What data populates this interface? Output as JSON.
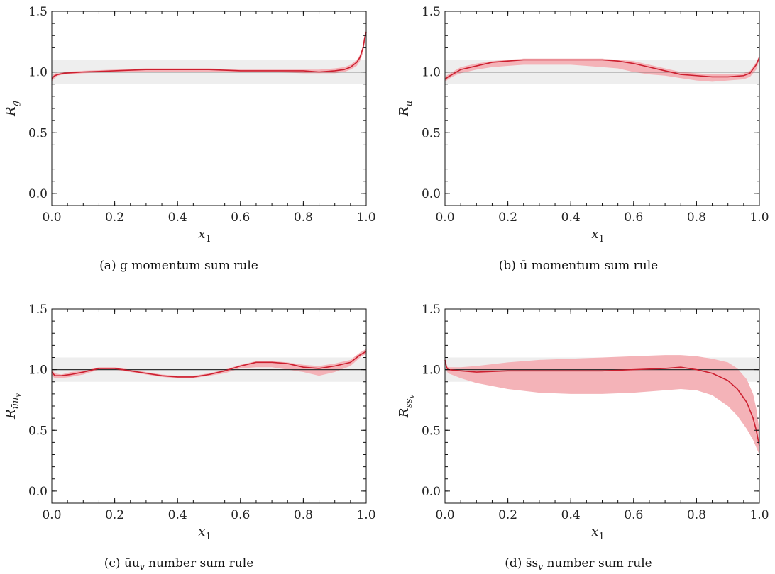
{
  "chart_data": [
    {
      "type": "line",
      "ylabel": "R",
      "ylabel_sub": "g",
      "xlabel": "x",
      "xlabel_sub": "1",
      "caption": "(a)  g momentum sum rule",
      "xlim": [
        0,
        1
      ],
      "ylim": [
        -0.1,
        1.5
      ],
      "xticks": [
        "0.0",
        "0.2",
        "0.4",
        "0.6",
        "0.8",
        "1.0"
      ],
      "yticks": [
        "0.0",
        "0.5",
        "1.0",
        "1.5"
      ],
      "reference_line": 1.0,
      "shaded_band": [
        0.9,
        1.1
      ],
      "series": [
        {
          "x": [
            0.0,
            0.005,
            0.01,
            0.02,
            0.04,
            0.1,
            0.2,
            0.3,
            0.4,
            0.5,
            0.6,
            0.7,
            0.8,
            0.85,
            0.9,
            0.93,
            0.95,
            0.97,
            0.98,
            0.99,
            0.995,
            1.0
          ],
          "y": [
            0.94,
            0.96,
            0.97,
            0.98,
            0.99,
            1.0,
            1.01,
            1.02,
            1.02,
            1.02,
            1.01,
            1.01,
            1.01,
            1.0,
            1.01,
            1.02,
            1.04,
            1.08,
            1.12,
            1.2,
            1.28,
            1.33
          ],
          "y_low": [
            0.92,
            0.94,
            0.95,
            0.97,
            0.98,
            0.99,
            1.0,
            1.0,
            1.0,
            1.0,
            1.0,
            1.0,
            0.99,
            0.99,
            0.99,
            1.0,
            1.02,
            1.05,
            1.09,
            1.16,
            1.24,
            1.3
          ],
          "y_high": [
            0.96,
            0.98,
            0.99,
            0.99,
            1.0,
            1.01,
            1.02,
            1.03,
            1.03,
            1.03,
            1.02,
            1.02,
            1.02,
            1.02,
            1.03,
            1.04,
            1.06,
            1.1,
            1.14,
            1.22,
            1.3,
            1.35
          ]
        }
      ]
    },
    {
      "type": "line",
      "ylabel": "R",
      "ylabel_sub": "ū",
      "xlabel": "x",
      "xlabel_sub": "1",
      "caption": "(b)  ū momentum sum rule",
      "xlim": [
        0,
        1
      ],
      "ylim": [
        -0.1,
        1.5
      ],
      "xticks": [
        "0.0",
        "0.2",
        "0.4",
        "0.6",
        "0.8",
        "1.0"
      ],
      "yticks": [
        "0.0",
        "0.5",
        "1.0",
        "1.5"
      ],
      "reference_line": 1.0,
      "shaded_band": [
        0.9,
        1.1
      ],
      "series": [
        {
          "x": [
            0.0,
            0.01,
            0.03,
            0.05,
            0.1,
            0.15,
            0.2,
            0.25,
            0.3,
            0.35,
            0.4,
            0.45,
            0.5,
            0.55,
            0.6,
            0.65,
            0.7,
            0.75,
            0.8,
            0.85,
            0.9,
            0.95,
            0.97,
            0.99,
            1.0
          ],
          "y": [
            0.94,
            0.96,
            0.99,
            1.02,
            1.05,
            1.08,
            1.09,
            1.1,
            1.1,
            1.1,
            1.1,
            1.1,
            1.1,
            1.09,
            1.07,
            1.04,
            1.01,
            0.98,
            0.97,
            0.96,
            0.96,
            0.97,
            0.99,
            1.06,
            1.12
          ],
          "y_low": [
            0.92,
            0.94,
            0.97,
            0.99,
            1.02,
            1.04,
            1.05,
            1.06,
            1.06,
            1.06,
            1.06,
            1.05,
            1.04,
            1.03,
            1.0,
            0.98,
            0.97,
            0.95,
            0.93,
            0.92,
            0.93,
            0.94,
            0.96,
            1.02,
            1.1
          ],
          "y_high": [
            0.96,
            0.98,
            1.01,
            1.04,
            1.07,
            1.09,
            1.1,
            1.11,
            1.11,
            1.11,
            1.11,
            1.11,
            1.11,
            1.1,
            1.09,
            1.06,
            1.03,
            1.0,
            0.99,
            0.98,
            0.98,
            0.99,
            1.01,
            1.08,
            1.14
          ]
        }
      ]
    },
    {
      "type": "line",
      "ylabel": "R",
      "ylabel_sub": "ūu",
      "ylabel_subsub": "v",
      "xlabel": "x",
      "xlabel_sub": "1",
      "caption": "(c)  ūu",
      "caption_sub": "v",
      "caption_tail": " number sum rule",
      "xlim": [
        0,
        1
      ],
      "ylim": [
        -0.1,
        1.5
      ],
      "xticks": [
        "0.0",
        "0.2",
        "0.4",
        "0.6",
        "0.8",
        "1.0"
      ],
      "yticks": [
        "0.0",
        "0.5",
        "1.0",
        "1.5"
      ],
      "reference_line": 1.0,
      "shaded_band": [
        0.9,
        1.1
      ],
      "series": [
        {
          "x": [
            0.0,
            0.01,
            0.03,
            0.06,
            0.1,
            0.15,
            0.2,
            0.25,
            0.3,
            0.35,
            0.4,
            0.45,
            0.5,
            0.55,
            0.6,
            0.65,
            0.7,
            0.75,
            0.8,
            0.85,
            0.9,
            0.95,
            0.98,
            1.0
          ],
          "y": [
            0.98,
            0.95,
            0.95,
            0.96,
            0.98,
            1.01,
            1.01,
            0.99,
            0.97,
            0.95,
            0.94,
            0.94,
            0.96,
            0.99,
            1.03,
            1.06,
            1.06,
            1.05,
            1.02,
            1.01,
            1.03,
            1.06,
            1.12,
            1.15
          ],
          "y_low": [
            0.95,
            0.93,
            0.93,
            0.94,
            0.96,
            1.0,
            1.0,
            0.98,
            0.96,
            0.94,
            0.93,
            0.93,
            0.95,
            0.97,
            1.01,
            1.02,
            1.02,
            1.0,
            0.98,
            0.95,
            0.98,
            1.03,
            1.1,
            1.13
          ],
          "y_high": [
            1.0,
            0.97,
            0.96,
            0.98,
            0.99,
            1.02,
            1.02,
            1.0,
            0.98,
            0.96,
            0.95,
            0.95,
            0.97,
            1.0,
            1.04,
            1.07,
            1.07,
            1.06,
            1.04,
            1.03,
            1.05,
            1.08,
            1.14,
            1.17
          ]
        }
      ]
    },
    {
      "type": "line",
      "ylabel": "R",
      "ylabel_sub": "s̄s",
      "ylabel_subsub": "v",
      "xlabel": "x",
      "xlabel_sub": "1",
      "caption": "(d)  s̄s",
      "caption_sub": "v",
      "caption_tail": " number sum rule",
      "xlim": [
        0,
        1
      ],
      "ylim": [
        -0.1,
        1.5
      ],
      "xticks": [
        "0.0",
        "0.2",
        "0.4",
        "0.6",
        "0.8",
        "1.0"
      ],
      "yticks": [
        "0.0",
        "0.5",
        "1.0",
        "1.5"
      ],
      "reference_line": 1.0,
      "shaded_band": [
        0.9,
        1.1
      ],
      "series": [
        {
          "x": [
            0.0,
            0.005,
            0.01,
            0.05,
            0.1,
            0.2,
            0.3,
            0.4,
            0.5,
            0.6,
            0.7,
            0.75,
            0.8,
            0.85,
            0.9,
            0.93,
            0.96,
            0.98,
            0.99,
            1.0
          ],
          "y": [
            1.08,
            1.02,
            1.0,
            0.99,
            0.98,
            0.99,
            0.99,
            0.99,
            0.99,
            1.0,
            1.01,
            1.02,
            1.0,
            0.97,
            0.91,
            0.84,
            0.73,
            0.6,
            0.5,
            0.37
          ],
          "y_low": [
            1.06,
            0.99,
            0.97,
            0.93,
            0.89,
            0.84,
            0.81,
            0.8,
            0.8,
            0.81,
            0.83,
            0.84,
            0.83,
            0.79,
            0.7,
            0.62,
            0.51,
            0.42,
            0.36,
            0.3
          ],
          "y_high": [
            1.1,
            1.03,
            1.02,
            1.02,
            1.03,
            1.06,
            1.08,
            1.09,
            1.1,
            1.11,
            1.12,
            1.12,
            1.11,
            1.09,
            1.06,
            1.01,
            0.92,
            0.8,
            0.68,
            0.5
          ]
        }
      ]
    }
  ]
}
